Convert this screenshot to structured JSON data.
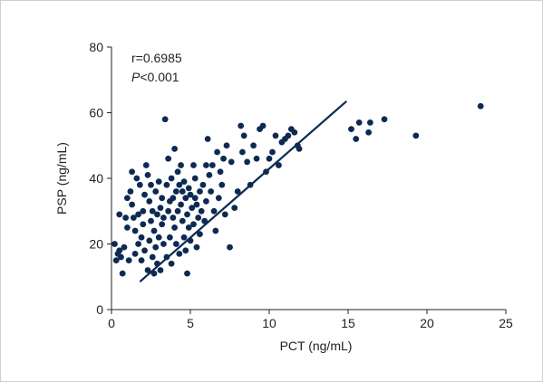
{
  "chart_data": {
    "type": "scatter",
    "title": "",
    "xlabel": "PCT (ng/mL)",
    "ylabel": "PSP (ng/mL)",
    "xlim": [
      0,
      25
    ],
    "ylim": [
      0,
      80
    ],
    "xticks": [
      0,
      5,
      10,
      15,
      20,
      25
    ],
    "yticks": [
      0,
      20,
      40,
      60,
      80
    ],
    "grid": false,
    "annotations": [
      {
        "text": "r=0.6985"
      },
      {
        "prefix": "P",
        "text": "<0.001"
      }
    ],
    "colors": {
      "points": "#0d2a52",
      "line": "#0d2a52",
      "axis": "#222222"
    },
    "series": [
      {
        "points": [
          [
            0.2,
            20
          ],
          [
            0.3,
            15
          ],
          [
            0.4,
            17
          ],
          [
            0.5,
            18
          ],
          [
            0.5,
            29
          ],
          [
            0.6,
            16
          ],
          [
            0.7,
            11
          ],
          [
            0.8,
            19
          ],
          [
            0.9,
            28
          ],
          [
            1.0,
            25
          ],
          [
            1.0,
            34
          ],
          [
            1.1,
            15
          ],
          [
            1.2,
            36
          ],
          [
            1.3,
            42
          ],
          [
            1.3,
            32
          ],
          [
            1.4,
            28
          ],
          [
            1.5,
            24
          ],
          [
            1.5,
            17
          ],
          [
            1.6,
            40
          ],
          [
            1.7,
            29
          ],
          [
            1.7,
            20
          ],
          [
            1.8,
            38
          ],
          [
            1.9,
            22
          ],
          [
            1.9,
            15
          ],
          [
            2.0,
            30
          ],
          [
            2.0,
            26
          ],
          [
            2.1,
            35
          ],
          [
            2.1,
            18
          ],
          [
            2.2,
            44
          ],
          [
            2.3,
            41
          ],
          [
            2.3,
            12
          ],
          [
            2.4,
            33
          ],
          [
            2.4,
            21
          ],
          [
            2.5,
            27
          ],
          [
            2.5,
            38
          ],
          [
            2.6,
            30
          ],
          [
            2.6,
            16
          ],
          [
            2.7,
            24
          ],
          [
            2.7,
            11
          ],
          [
            2.8,
            36
          ],
          [
            2.8,
            19
          ],
          [
            2.9,
            29
          ],
          [
            2.9,
            14
          ],
          [
            3.0,
            22
          ],
          [
            3.0,
            39
          ],
          [
            3.1,
            31
          ],
          [
            3.1,
            12
          ],
          [
            3.2,
            26
          ],
          [
            3.2,
            34
          ],
          [
            3.3,
            20
          ],
          [
            3.3,
            28
          ],
          [
            3.4,
            58
          ],
          [
            3.5,
            38
          ],
          [
            3.5,
            16
          ],
          [
            3.6,
            30
          ],
          [
            3.6,
            46
          ],
          [
            3.7,
            22
          ],
          [
            3.7,
            33
          ],
          [
            3.8,
            40
          ],
          [
            3.8,
            14
          ],
          [
            3.9,
            28
          ],
          [
            3.9,
            34
          ],
          [
            4.0,
            25
          ],
          [
            4.0,
            49
          ],
          [
            4.1,
            36
          ],
          [
            4.1,
            20
          ],
          [
            4.2,
            42
          ],
          [
            4.2,
            30
          ],
          [
            4.3,
            38
          ],
          [
            4.3,
            17
          ],
          [
            4.4,
            32
          ],
          [
            4.4,
            44
          ],
          [
            4.5,
            27
          ],
          [
            4.5,
            36
          ],
          [
            4.6,
            22
          ],
          [
            4.6,
            39
          ],
          [
            4.7,
            34
          ],
          [
            4.7,
            18
          ],
          [
            4.8,
            29
          ],
          [
            4.8,
            11
          ],
          [
            4.9,
            37
          ],
          [
            4.9,
            25
          ],
          [
            5.0,
            35
          ],
          [
            5.0,
            21
          ],
          [
            5.1,
            31
          ],
          [
            5.2,
            44
          ],
          [
            5.2,
            26
          ],
          [
            5.3,
            34
          ],
          [
            5.3,
            40
          ],
          [
            5.4,
            19
          ],
          [
            5.4,
            32
          ],
          [
            5.5,
            28
          ],
          [
            5.6,
            36
          ],
          [
            5.6,
            23
          ],
          [
            5.7,
            30
          ],
          [
            5.8,
            38
          ],
          [
            5.9,
            27
          ],
          [
            6.0,
            33
          ],
          [
            6.0,
            44
          ],
          [
            6.1,
            52
          ],
          [
            6.2,
            41
          ],
          [
            6.3,
            36
          ],
          [
            6.4,
            44
          ],
          [
            6.5,
            30
          ],
          [
            6.6,
            24
          ],
          [
            6.7,
            48
          ],
          [
            6.8,
            34
          ],
          [
            6.9,
            42
          ],
          [
            7.0,
            38
          ],
          [
            7.1,
            46
          ],
          [
            7.2,
            29
          ],
          [
            7.3,
            50
          ],
          [
            7.5,
            19
          ],
          [
            7.6,
            45
          ],
          [
            7.8,
            31
          ],
          [
            8.0,
            36
          ],
          [
            8.2,
            56
          ],
          [
            8.3,
            48
          ],
          [
            8.4,
            53
          ],
          [
            8.6,
            45
          ],
          [
            8.8,
            38
          ],
          [
            9.0,
            50
          ],
          [
            9.2,
            46
          ],
          [
            9.4,
            55
          ],
          [
            9.6,
            56
          ],
          [
            9.8,
            42
          ],
          [
            10.0,
            46
          ],
          [
            10.2,
            48
          ],
          [
            10.4,
            53
          ],
          [
            10.6,
            44
          ],
          [
            10.8,
            51
          ],
          [
            11.0,
            52
          ],
          [
            11.2,
            53
          ],
          [
            11.4,
            55
          ],
          [
            11.6,
            54
          ],
          [
            11.8,
            50
          ],
          [
            11.9,
            49
          ],
          [
            15.2,
            55
          ],
          [
            15.5,
            52
          ],
          [
            15.7,
            57
          ],
          [
            16.3,
            54
          ],
          [
            16.4,
            57
          ],
          [
            17.3,
            58
          ],
          [
            19.3,
            53
          ],
          [
            23.4,
            62
          ]
        ]
      }
    ],
    "trendline": {
      "x": [
        1.8,
        14.9
      ],
      "y": [
        8.5,
        63.5
      ]
    }
  }
}
